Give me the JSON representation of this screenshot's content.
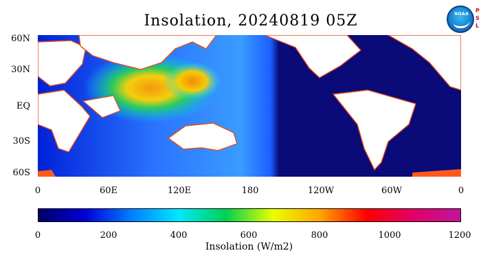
{
  "title": "Insolation, 20240819 05Z",
  "logo": {
    "text": "NOAA",
    "tag": "P S L"
  },
  "map": {
    "lat_labels": [
      "60N",
      "30N",
      "EQ",
      "30S",
      "60S"
    ],
    "lon_labels": [
      "0",
      "60E",
      "120E",
      "180",
      "120W",
      "60W",
      "0"
    ],
    "land_color": "#ffffff",
    "night_color": "#0a0a78",
    "coast_color": "#e64a19"
  },
  "colorbar": {
    "title": "Insolation (W/m2)",
    "ticks": [
      "0",
      "200",
      "400",
      "600",
      "800",
      "1000",
      "1200"
    ],
    "colors": [
      "#000066",
      "#0000d8",
      "#0080ff",
      "#00e8ff",
      "#00d050",
      "#e8ff00",
      "#ffa500",
      "#ff0000",
      "#e0006a",
      "#c0169a"
    ]
  }
}
